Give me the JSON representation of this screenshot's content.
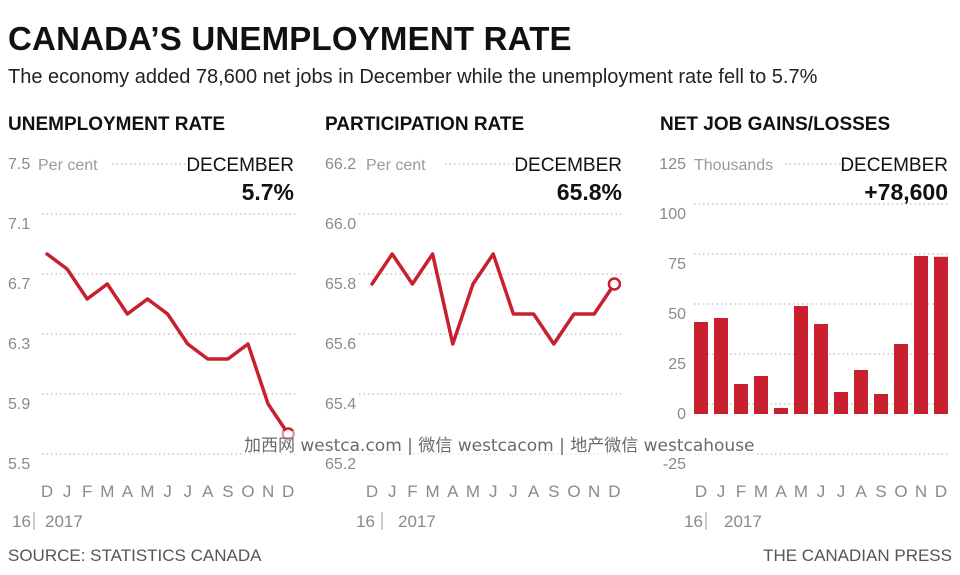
{
  "header": {
    "title": "CANADA’S UNEMPLOYMENT RATE",
    "subtitle": "The economy added 78,600 net jobs in December while the unemployment rate fell to 5.7%"
  },
  "footer": {
    "source": "SOURCE: STATISTICS CANADA",
    "credit": "THE CANADIAN PRESS"
  },
  "watermark": "加西网 westca.com | 微信 westcacom | 地产微信 westcahouse",
  "colors": {
    "series": "#c8202e",
    "grid": "#aaaaaa",
    "text": "#111111"
  },
  "chart_data": [
    {
      "type": "line",
      "title": "UNEMPLOYMENT RATE",
      "unit_label": "Per cent",
      "callout_label": "DECEMBER",
      "callout_value": "5.7%",
      "x": [
        "D",
        "J",
        "F",
        "M",
        "A",
        "M",
        "J",
        "J",
        "A",
        "S",
        "O",
        "N",
        "D"
      ],
      "year_labels": [
        "16",
        "2017"
      ],
      "values": [
        6.9,
        6.8,
        6.6,
        6.7,
        6.5,
        6.6,
        6.5,
        6.3,
        6.2,
        6.2,
        6.3,
        5.9,
        5.7
      ],
      "yticks": [
        "7.5",
        "7.1",
        "6.7",
        "6.3",
        "5.9",
        "5.5"
      ],
      "ylim": [
        5.5,
        7.5
      ],
      "grid": true
    },
    {
      "type": "line",
      "title": "PARTICIPATION RATE",
      "unit_label": "Per cent",
      "callout_label": "DECEMBER",
      "callout_value": "65.8%",
      "x": [
        "D",
        "J",
        "F",
        "M",
        "A",
        "M",
        "J",
        "J",
        "A",
        "S",
        "O",
        "N",
        "D"
      ],
      "year_labels": [
        "16",
        "2017"
      ],
      "values": [
        65.8,
        65.9,
        65.8,
        65.9,
        65.6,
        65.8,
        65.9,
        65.7,
        65.7,
        65.6,
        65.7,
        65.7,
        65.8
      ],
      "yticks": [
        "66.2",
        "66.0",
        "65.8",
        "65.6",
        "65.4",
        "65.2"
      ],
      "ylim": [
        65.2,
        66.2
      ],
      "grid": true
    },
    {
      "type": "bar",
      "title": "NET JOB GAINS/LOSSES",
      "unit_label": "Thousands",
      "callout_label": "DECEMBER",
      "callout_value": "+78,600",
      "categories": [
        "D",
        "J",
        "F",
        "M",
        "A",
        "M",
        "J",
        "J",
        "A",
        "S",
        "O",
        "N",
        "D"
      ],
      "year_labels": [
        "16",
        "2017"
      ],
      "values": [
        46,
        48,
        15,
        19,
        3,
        54,
        45,
        11,
        22,
        10,
        35,
        79,
        78.6
      ],
      "yticks": [
        "125",
        "100",
        "75",
        "50",
        "25",
        "0",
        "-25"
      ],
      "ylim": [
        -25,
        125
      ],
      "grid": true
    }
  ]
}
